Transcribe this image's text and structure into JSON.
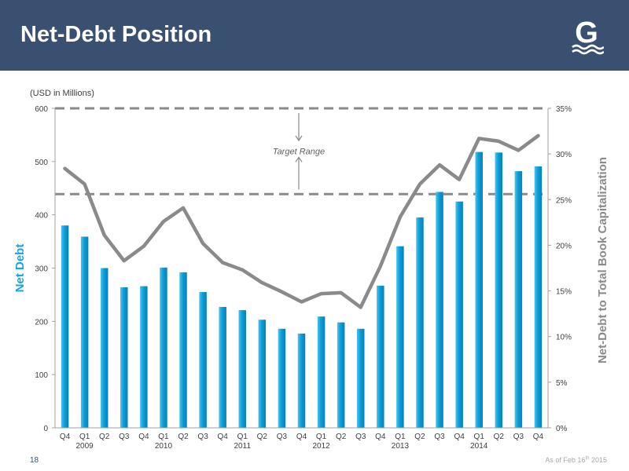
{
  "header": {
    "title": "Net-Debt Position",
    "logo_letter": "G"
  },
  "footer": {
    "page_number": "18",
    "as_of_prefix": "As of Feb 16",
    "as_of_sup": "th",
    "as_of_suffix": " 2015"
  },
  "colors": {
    "header_bg": "#3a5070",
    "bar": "#0a9ed8",
    "line": "#8a8a8a",
    "target_line": "#8a8a8a",
    "left_axis_title": "#1aa3dc",
    "right_axis_title": "#8a8a8a"
  },
  "chart_data": {
    "type": "bar",
    "units_note": "(USD in Millions)",
    "ylabel": "Net Debt",
    "y2label": "Net-Debt to Total Book Capitalization",
    "ylim": [
      0,
      600
    ],
    "yticks": [
      0,
      100,
      200,
      300,
      400,
      500,
      600
    ],
    "y2lim": [
      0,
      35
    ],
    "y2ticks": [
      "0%",
      "5%",
      "10%",
      "15%",
      "20%",
      "25%",
      "30%",
      "35%"
    ],
    "categories": [
      "Q4",
      "Q1",
      "Q2",
      "Q3",
      "Q4",
      "Q1",
      "Q2",
      "Q3",
      "Q4",
      "Q1",
      "Q2",
      "Q3",
      "Q4",
      "Q1",
      "Q2",
      "Q3",
      "Q4",
      "Q1",
      "Q2",
      "Q3",
      "Q4",
      "Q1",
      "Q2",
      "Q3",
      "Q4"
    ],
    "year_labels": [
      {
        "label": "2009",
        "category_index": 1
      },
      {
        "label": "2010",
        "category_index": 5
      },
      {
        "label": "2011",
        "category_index": 9
      },
      {
        "label": "2012",
        "category_index": 13
      },
      {
        "label": "2013",
        "category_index": 17
      },
      {
        "label": "2014",
        "category_index": 21
      }
    ],
    "series": [
      {
        "kind": "bar",
        "axis": "left",
        "values": [
          380,
          359,
          300,
          264,
          266,
          301,
          292,
          255,
          227,
          221,
          203,
          186,
          177,
          209,
          198,
          186,
          267,
          341,
          395,
          443,
          425,
          518,
          517,
          482,
          491
        ]
      },
      {
        "kind": "line",
        "axis": "right",
        "values": [
          28.4,
          26.7,
          21.1,
          18.3,
          19.9,
          22.6,
          24.1,
          20.2,
          18.1,
          17.3,
          15.9,
          14.9,
          13.8,
          14.7,
          14.8,
          13.2,
          17.7,
          23.1,
          26.7,
          28.8,
          27.2,
          31.7,
          31.4,
          30.4,
          32.0
        ]
      }
    ],
    "target_range": {
      "label": "Target Range",
      "upper": 35,
      "lower": 25.6
    }
  }
}
